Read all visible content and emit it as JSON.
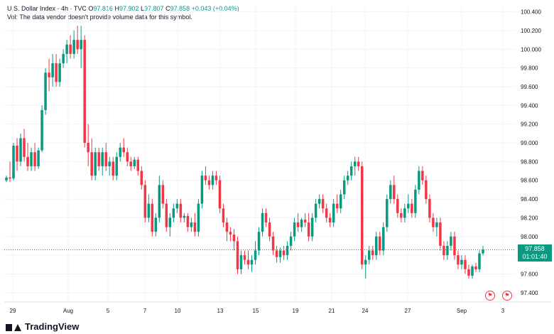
{
  "header": {
    "symbol": "U.S. Dollar Index · 4h · TVC",
    "o_label": "O",
    "o_value": "97.816",
    "h_label": "H",
    "h_value": "97.902",
    "l_label": "L",
    "l_value": "97.807",
    "c_label": "C",
    "c_value": "97.858",
    "change": "+0.043 (+0.04%)",
    "vol_note": "Vol: The data vendor doesn't provide volume data for this symbol."
  },
  "price_tag": {
    "price": "97.858",
    "countdown": "01:01:40"
  },
  "logo_text": "TradingView",
  "colors": {
    "up": "#089981",
    "down": "#f23645",
    "grid": "#f0f3fa",
    "axis_text": "#131722",
    "last_price_line": "#089981"
  },
  "event_icons": [
    "flag-us-icon",
    "flag-us-icon"
  ],
  "chart_data": {
    "type": "candlestick",
    "ylim": [
      97.3,
      100.45
    ],
    "y_ticks": [
      "100.400",
      "100.200",
      "100.000",
      "99.800",
      "99.600",
      "99.400",
      "99.200",
      "99.000",
      "98.800",
      "98.600",
      "98.400",
      "98.200",
      "98.000",
      "97.800",
      "97.600",
      "97.400"
    ],
    "x_ticks": [
      "29",
      "Aug",
      "5",
      "7",
      "10",
      "13",
      "15",
      "19",
      "21",
      "24",
      "27",
      "Sep",
      "3"
    ],
    "last_price": 97.858,
    "candles": [
      [
        98.6,
        98.65,
        98.58,
        98.63
      ],
      [
        98.63,
        98.8,
        98.58,
        98.62
      ],
      [
        98.62,
        99.0,
        98.6,
        98.97
      ],
      [
        98.97,
        99.05,
        98.7,
        98.8
      ],
      [
        98.8,
        99.1,
        98.75,
        99.05
      ],
      [
        99.05,
        99.15,
        98.8,
        98.85
      ],
      [
        98.85,
        99.0,
        98.7,
        98.75
      ],
      [
        98.75,
        98.95,
        98.7,
        98.9
      ],
      [
        98.9,
        99.0,
        98.7,
        98.75
      ],
      [
        98.75,
        98.95,
        98.72,
        98.92
      ],
      [
        98.92,
        99.4,
        98.9,
        99.35
      ],
      [
        99.35,
        99.8,
        99.3,
        99.75
      ],
      [
        99.75,
        99.9,
        99.55,
        99.7
      ],
      [
        99.7,
        99.95,
        99.6,
        99.85
      ],
      [
        99.85,
        99.95,
        99.6,
        99.65
      ],
      [
        99.65,
        99.9,
        99.6,
        99.85
      ],
      [
        99.85,
        100.0,
        99.8,
        99.95
      ],
      [
        99.95,
        100.1,
        99.85,
        100.05
      ],
      [
        100.05,
        100.15,
        99.9,
        99.95
      ],
      [
        99.95,
        100.2,
        99.9,
        100.1
      ],
      [
        100.1,
        100.25,
        99.95,
        100.0
      ],
      [
        100.0,
        100.25,
        99.8,
        100.1
      ],
      [
        100.1,
        100.15,
        98.95,
        99.0
      ],
      [
        99.0,
        99.2,
        98.75,
        98.9
      ],
      [
        98.9,
        99.05,
        98.6,
        98.65
      ],
      [
        98.65,
        98.95,
        98.6,
        98.9
      ],
      [
        98.9,
        98.95,
        98.7,
        98.75
      ],
      [
        98.75,
        98.95,
        98.65,
        98.9
      ],
      [
        98.9,
        99.0,
        98.7,
        98.75
      ],
      [
        98.75,
        98.85,
        98.65,
        98.8
      ],
      [
        98.8,
        98.85,
        98.6,
        98.65
      ],
      [
        98.65,
        98.9,
        98.6,
        98.85
      ],
      [
        98.85,
        99.0,
        98.8,
        98.95
      ],
      [
        98.95,
        99.05,
        98.85,
        98.9
      ],
      [
        98.9,
        98.95,
        98.75,
        98.8
      ],
      [
        98.8,
        98.85,
        98.7,
        98.75
      ],
      [
        98.75,
        98.85,
        98.72,
        98.82
      ],
      [
        98.82,
        98.85,
        98.65,
        98.7
      ],
      [
        98.7,
        98.75,
        98.5,
        98.55
      ],
      [
        98.55,
        98.6,
        98.15,
        98.2
      ],
      [
        98.2,
        98.45,
        98.15,
        98.35
      ],
      [
        98.35,
        98.4,
        98.0,
        98.05
      ],
      [
        98.05,
        98.25,
        98.0,
        98.2
      ],
      [
        98.2,
        98.65,
        98.15,
        98.55
      ],
      [
        98.55,
        98.6,
        98.3,
        98.35
      ],
      [
        98.35,
        98.4,
        98.05,
        98.1
      ],
      [
        98.1,
        98.25,
        98.0,
        98.2
      ],
      [
        98.2,
        98.35,
        98.15,
        98.3
      ],
      [
        98.3,
        98.4,
        98.25,
        98.35
      ],
      [
        98.35,
        98.4,
        98.15,
        98.2
      ],
      [
        98.2,
        98.25,
        98.15,
        98.22
      ],
      [
        98.22,
        98.25,
        98.05,
        98.1
      ],
      [
        98.1,
        98.2,
        98.05,
        98.15
      ],
      [
        98.15,
        98.25,
        98.0,
        98.05
      ],
      [
        98.05,
        98.4,
        98.0,
        98.35
      ],
      [
        98.35,
        98.7,
        98.3,
        98.65
      ],
      [
        98.65,
        98.75,
        98.55,
        98.6
      ],
      [
        98.6,
        98.65,
        98.5,
        98.55
      ],
      [
        98.55,
        98.7,
        98.5,
        98.65
      ],
      [
        98.65,
        98.7,
        98.55,
        98.6
      ],
      [
        98.6,
        98.65,
        98.25,
        98.3
      ],
      [
        98.3,
        98.35,
        98.1,
        98.15
      ],
      [
        98.15,
        98.2,
        97.95,
        98.05
      ],
      [
        98.05,
        98.1,
        97.95,
        98.02
      ],
      [
        98.02,
        98.08,
        97.85,
        97.95
      ],
      [
        97.95,
        98.0,
        97.6,
        97.65
      ],
      [
        97.65,
        97.85,
        97.6,
        97.8
      ],
      [
        97.8,
        97.85,
        97.7,
        97.75
      ],
      [
        97.75,
        97.85,
        97.65,
        97.7
      ],
      [
        97.7,
        97.8,
        97.62,
        97.75
      ],
      [
        97.75,
        97.95,
        97.7,
        97.85
      ],
      [
        97.85,
        98.1,
        97.8,
        98.05
      ],
      [
        98.05,
        98.3,
        98.0,
        98.25
      ],
      [
        98.25,
        98.3,
        98.1,
        98.15
      ],
      [
        98.15,
        98.2,
        97.95,
        98.0
      ],
      [
        98.0,
        98.05,
        97.8,
        97.85
      ],
      [
        97.85,
        97.9,
        97.72,
        97.78
      ],
      [
        97.78,
        97.88,
        97.72,
        97.85
      ],
      [
        97.85,
        97.9,
        97.75,
        97.8
      ],
      [
        97.8,
        97.95,
        97.75,
        97.9
      ],
      [
        97.9,
        98.05,
        97.85,
        98.0
      ],
      [
        98.0,
        98.2,
        97.95,
        98.15
      ],
      [
        98.15,
        98.25,
        98.05,
        98.1
      ],
      [
        98.1,
        98.2,
        98.05,
        98.18
      ],
      [
        98.18,
        98.25,
        98.1,
        98.15
      ],
      [
        98.15,
        98.25,
        97.95,
        98.0
      ],
      [
        98.0,
        98.25,
        97.95,
        98.2
      ],
      [
        98.2,
        98.4,
        98.15,
        98.35
      ],
      [
        98.35,
        98.45,
        98.3,
        98.4
      ],
      [
        98.4,
        98.45,
        98.25,
        98.3
      ],
      [
        98.3,
        98.35,
        98.15,
        98.2
      ],
      [
        98.2,
        98.25,
        98.1,
        98.15
      ],
      [
        98.15,
        98.4,
        98.1,
        98.35
      ],
      [
        98.35,
        98.45,
        98.25,
        98.3
      ],
      [
        98.3,
        98.5,
        98.25,
        98.45
      ],
      [
        98.45,
        98.65,
        98.4,
        98.6
      ],
      [
        98.6,
        98.7,
        98.55,
        98.65
      ],
      [
        98.65,
        98.8,
        98.6,
        98.75
      ],
      [
        98.75,
        98.85,
        98.65,
        98.8
      ],
      [
        98.8,
        98.85,
        98.7,
        98.75
      ],
      [
        98.75,
        98.8,
        97.65,
        97.7
      ],
      [
        97.7,
        97.8,
        97.55,
        97.75
      ],
      [
        97.75,
        97.9,
        97.7,
        97.85
      ],
      [
        97.85,
        97.9,
        97.75,
        97.8
      ],
      [
        97.8,
        98.05,
        97.75,
        98.0
      ],
      [
        98.0,
        98.05,
        97.8,
        97.85
      ],
      [
        97.85,
        98.15,
        97.8,
        98.1
      ],
      [
        98.1,
        98.45,
        98.05,
        98.4
      ],
      [
        98.4,
        98.6,
        98.35,
        98.55
      ],
      [
        98.55,
        98.65,
        98.35,
        98.4
      ],
      [
        98.4,
        98.45,
        98.2,
        98.25
      ],
      [
        98.25,
        98.3,
        98.15,
        98.2
      ],
      [
        98.2,
        98.35,
        98.15,
        98.3
      ],
      [
        98.3,
        98.45,
        98.25,
        98.35
      ],
      [
        98.35,
        98.4,
        98.2,
        98.25
      ],
      [
        98.25,
        98.55,
        98.2,
        98.5
      ],
      [
        98.5,
        98.75,
        98.45,
        98.7
      ],
      [
        98.7,
        98.75,
        98.55,
        98.6
      ],
      [
        98.6,
        98.65,
        98.35,
        98.4
      ],
      [
        98.4,
        98.45,
        98.15,
        98.2
      ],
      [
        98.2,
        98.25,
        98.05,
        98.1
      ],
      [
        98.1,
        98.2,
        98.0,
        98.15
      ],
      [
        98.15,
        98.2,
        97.85,
        97.9
      ],
      [
        97.9,
        97.95,
        97.75,
        97.8
      ],
      [
        97.8,
        97.95,
        97.75,
        97.9
      ],
      [
        97.9,
        98.05,
        97.85,
        98.0
      ],
      [
        98.0,
        98.05,
        97.75,
        97.8
      ],
      [
        97.8,
        97.85,
        97.65,
        97.7
      ],
      [
        97.7,
        97.8,
        97.65,
        97.75
      ],
      [
        97.75,
        97.8,
        97.6,
        97.65
      ],
      [
        97.65,
        97.7,
        97.55,
        97.58
      ],
      [
        97.58,
        97.7,
        97.55,
        97.68
      ],
      [
        97.68,
        97.72,
        97.62,
        97.65
      ],
      [
        97.65,
        97.85,
        97.62,
        97.82
      ],
      [
        97.82,
        97.9,
        97.8,
        97.86
      ]
    ]
  }
}
